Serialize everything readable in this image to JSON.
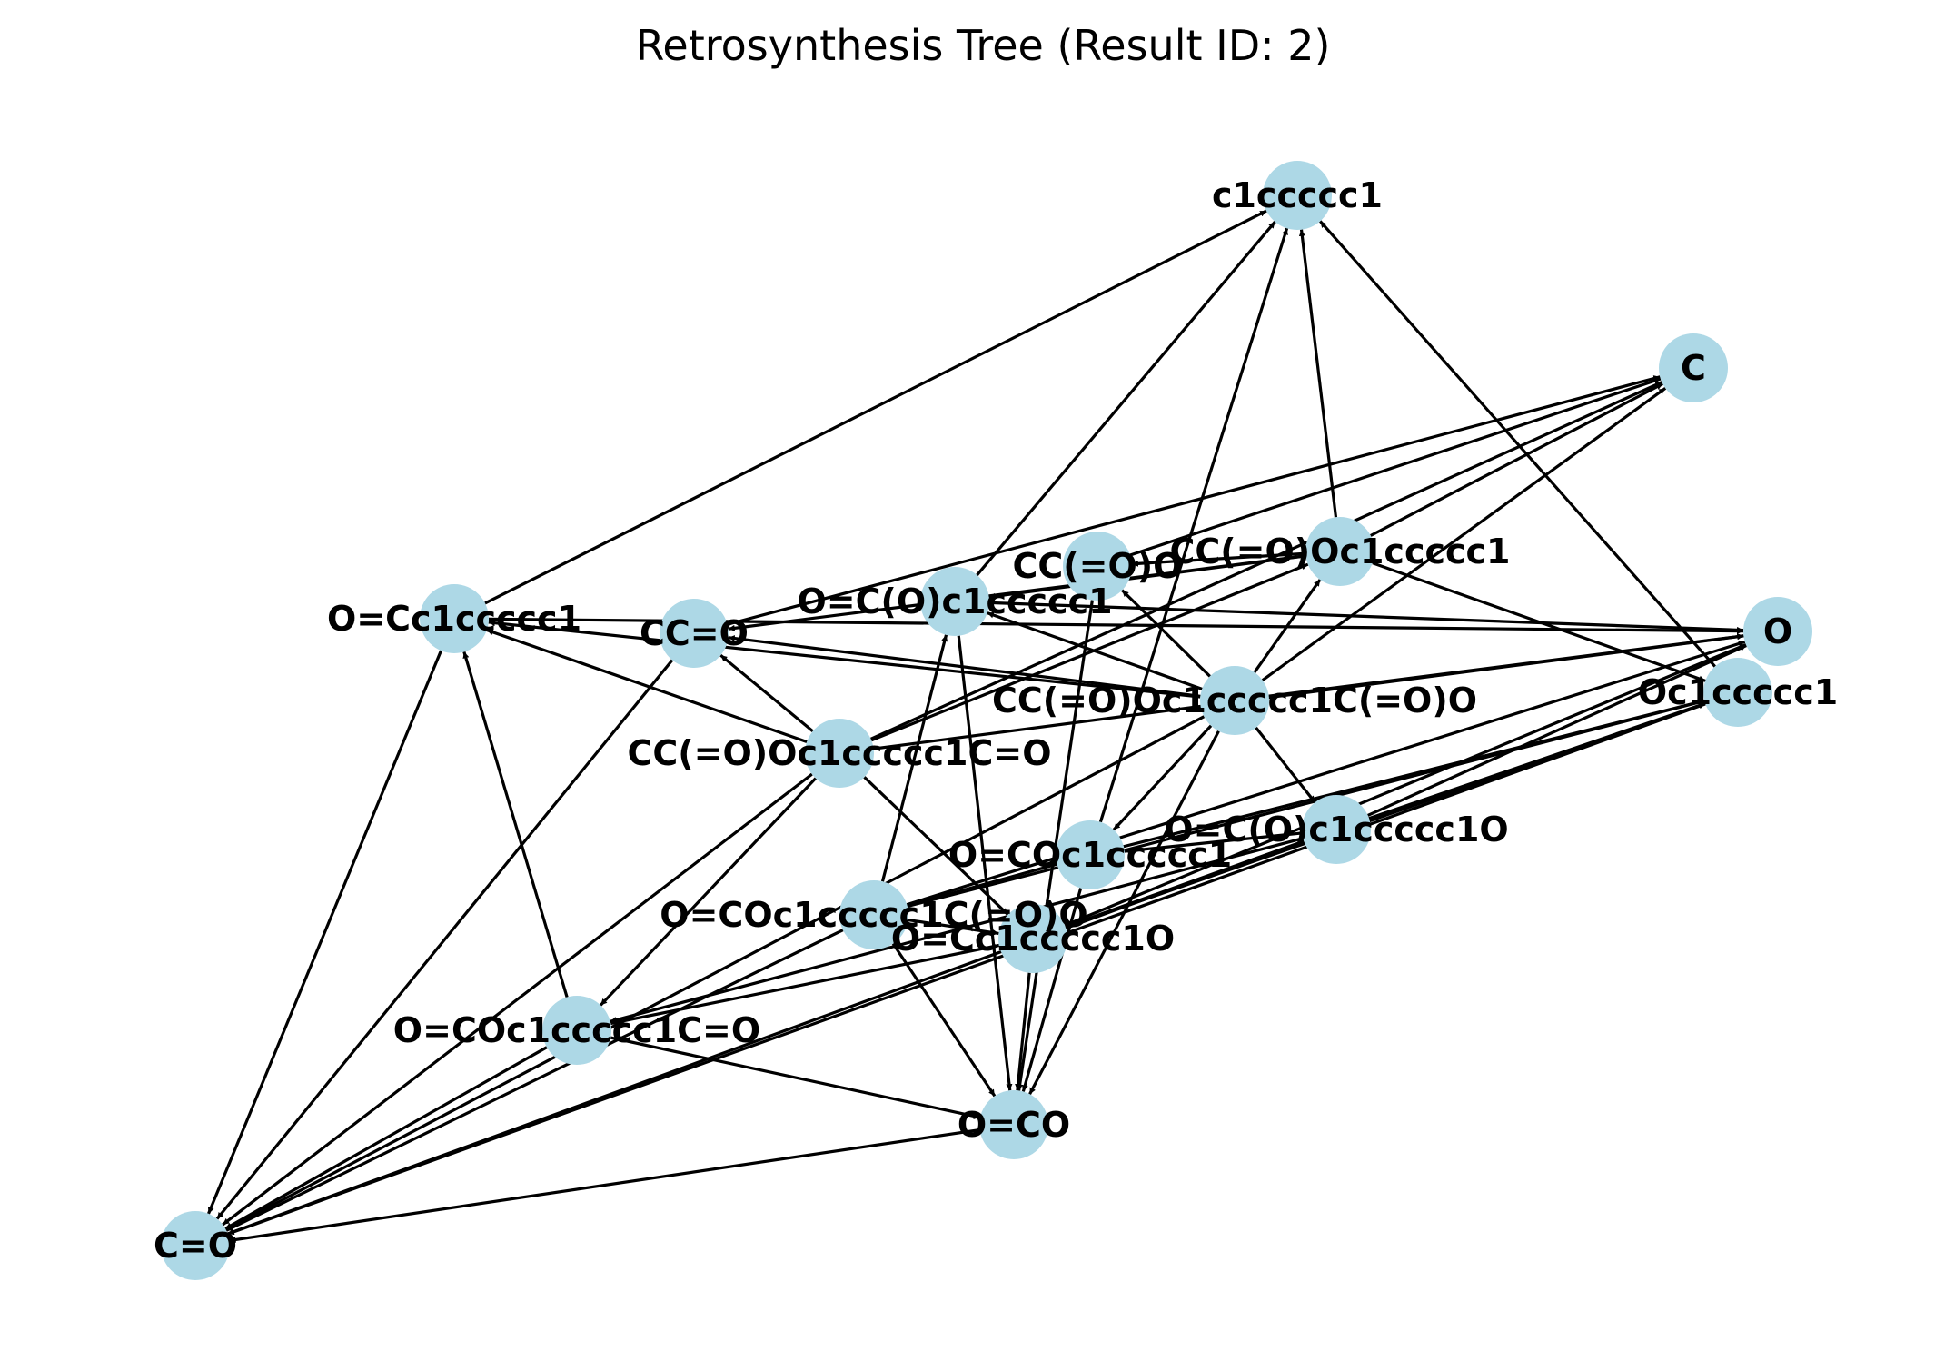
{
  "title": "Retrosynthesis Tree (Result ID: 2)",
  "colors": {
    "node": "#add8e6",
    "edge": "#000000",
    "background": "#ffffff"
  },
  "nodes": [
    {
      "id": "benzene",
      "label": "c1ccccc1"
    },
    {
      "id": "methane",
      "label": "C"
    },
    {
      "id": "water",
      "label": "O"
    },
    {
      "id": "phenol",
      "label": "Oc1ccccc1"
    },
    {
      "id": "benzaldehyde",
      "label": "O=Cc1ccccc1"
    },
    {
      "id": "acetaldehyde",
      "label": "CC=O"
    },
    {
      "id": "acetic_acid",
      "label": "CC(=O)O"
    },
    {
      "id": "benzoic_acid",
      "label": "O=C(O)c1ccccc1"
    },
    {
      "id": "phenyl_acetate",
      "label": "CC(=O)Oc1ccccc1"
    },
    {
      "id": "aspirin",
      "label": "CC(=O)Oc1ccccc1C(=O)O"
    },
    {
      "id": "acetylsalicylaldehyde",
      "label": "CC(=O)Oc1ccccc1C=O"
    },
    {
      "id": "salicylic_acid",
      "label": "O=C(O)c1ccccc1O"
    },
    {
      "id": "phenyl_formate",
      "label": "O=COc1ccccc1"
    },
    {
      "id": "formyloxy_benzoic",
      "label": "O=COc1ccccc1C(=O)O"
    },
    {
      "id": "salicylaldehyde",
      "label": "O=Cc1ccccc1O"
    },
    {
      "id": "formyloxy_benzaldehyde",
      "label": "O=COc1ccccc1C=O"
    },
    {
      "id": "formic_acid",
      "label": "O=CO"
    },
    {
      "id": "formaldehyde",
      "label": "C=O"
    }
  ],
  "edges": [
    [
      "benzaldehyde",
      "benzene"
    ],
    [
      "benzaldehyde",
      "water"
    ],
    [
      "benzaldehyde",
      "formaldehyde"
    ],
    [
      "acetaldehyde",
      "methane"
    ],
    [
      "acetaldehyde",
      "formaldehyde"
    ],
    [
      "acetic_acid",
      "methane"
    ],
    [
      "acetic_acid",
      "formic_acid"
    ],
    [
      "benzoic_acid",
      "benzene"
    ],
    [
      "benzoic_acid",
      "water"
    ],
    [
      "benzoic_acid",
      "formic_acid"
    ],
    [
      "phenyl_acetate",
      "benzene"
    ],
    [
      "phenyl_acetate",
      "methane"
    ],
    [
      "phenyl_acetate",
      "acetaldehyde"
    ],
    [
      "phenyl_acetate",
      "benzoic_acid"
    ],
    [
      "phenyl_acetate",
      "phenol"
    ],
    [
      "phenyl_acetate",
      "acetic_acid"
    ],
    [
      "aspirin",
      "acetaldehyde"
    ],
    [
      "aspirin",
      "benzaldehyde"
    ],
    [
      "aspirin",
      "acetic_acid"
    ],
    [
      "aspirin",
      "benzoic_acid"
    ],
    [
      "aspirin",
      "phenyl_acetate"
    ],
    [
      "aspirin",
      "salicylic_acid"
    ],
    [
      "aspirin",
      "phenyl_formate"
    ],
    [
      "aspirin",
      "methane"
    ],
    [
      "aspirin",
      "water"
    ],
    [
      "aspirin",
      "formic_acid"
    ],
    [
      "aspirin",
      "formaldehyde"
    ],
    [
      "acetylsalicylaldehyde",
      "acetaldehyde"
    ],
    [
      "acetylsalicylaldehyde",
      "benzaldehyde"
    ],
    [
      "acetylsalicylaldehyde",
      "phenyl_acetate"
    ],
    [
      "acetylsalicylaldehyde",
      "methane"
    ],
    [
      "acetylsalicylaldehyde",
      "salicylaldehyde"
    ],
    [
      "acetylsalicylaldehyde",
      "formyloxy_benzaldehyde"
    ],
    [
      "acetylsalicylaldehyde",
      "formaldehyde"
    ],
    [
      "acetylsalicylaldehyde",
      "water"
    ],
    [
      "salicylic_acid",
      "water"
    ],
    [
      "salicylic_acid",
      "phenol"
    ],
    [
      "salicylic_acid",
      "phenyl_formate"
    ],
    [
      "salicylic_acid",
      "salicylaldehyde"
    ],
    [
      "salicylic_acid",
      "formyloxy_benzaldehyde"
    ],
    [
      "salicylic_acid",
      "formaldehyde"
    ],
    [
      "phenyl_formate",
      "benzene"
    ],
    [
      "phenyl_formate",
      "phenol"
    ],
    [
      "phenyl_formate",
      "formic_acid"
    ],
    [
      "formyloxy_benzoic",
      "benzoic_acid"
    ],
    [
      "formyloxy_benzoic",
      "phenyl_formate"
    ],
    [
      "formyloxy_benzoic",
      "phenol"
    ],
    [
      "formyloxy_benzoic",
      "water"
    ],
    [
      "formyloxy_benzoic",
      "formic_acid"
    ],
    [
      "formyloxy_benzoic",
      "salicylaldehyde"
    ],
    [
      "formyloxy_benzoic",
      "formaldehyde"
    ],
    [
      "salicylaldehyde",
      "phenol"
    ],
    [
      "salicylaldehyde",
      "water"
    ],
    [
      "salicylaldehyde",
      "formic_acid"
    ],
    [
      "formyloxy_benzaldehyde",
      "benzaldehyde"
    ],
    [
      "formyloxy_benzaldehyde",
      "formic_acid"
    ],
    [
      "formyloxy_benzaldehyde",
      "salicylaldehyde"
    ],
    [
      "formyloxy_benzaldehyde",
      "formaldehyde"
    ],
    [
      "phenol",
      "benzene"
    ],
    [
      "phenol",
      "formaldehyde"
    ],
    [
      "formic_acid",
      "formaldehyde"
    ]
  ]
}
